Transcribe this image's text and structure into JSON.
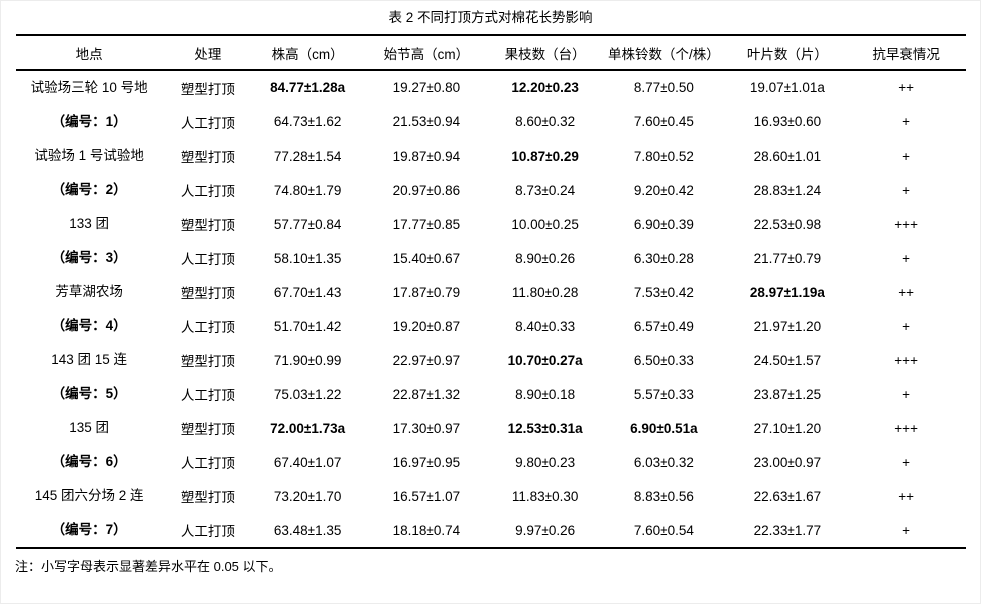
{
  "page": {
    "title": "表 2 不同打顶方式对棉花长势影响",
    "note": "注：小写字母表示显著差异水平在 0.05 以下。"
  },
  "table": {
    "columns": [
      "地点",
      "处理",
      "株高（cm）",
      "始节高（cm）",
      "果枝数（台）",
      "单株铃数（个/株）",
      "叶片数（片）",
      "抗早衰情况"
    ],
    "groups": [
      {
        "location": "试验场三轮 10 号地",
        "code": "（编号：1）",
        "rows": [
          {
            "treatment": "塑型打顶",
            "values": [
              {
                "v": "84.77±1.28a",
                "b": true
              },
              {
                "v": "19.27±0.80"
              },
              {
                "v": "12.20±0.23",
                "b": true
              },
              {
                "v": "8.77±0.50"
              },
              {
                "v": "19.07±1.01a"
              }
            ],
            "resistance": "++"
          },
          {
            "treatment": "人工打顶",
            "values": [
              {
                "v": "64.73±1.62"
              },
              {
                "v": "21.53±0.94"
              },
              {
                "v": "8.60±0.32"
              },
              {
                "v": "7.60±0.45"
              },
              {
                "v": "16.93±0.60"
              }
            ],
            "resistance": "+"
          }
        ]
      },
      {
        "location": "试验场 1 号试验地",
        "code": "（编号：2）",
        "rows": [
          {
            "treatment": "塑型打顶",
            "values": [
              {
                "v": "77.28±1.54"
              },
              {
                "v": "19.87±0.94"
              },
              {
                "v": "10.87±0.29",
                "b": true
              },
              {
                "v": "7.80±0.52"
              },
              {
                "v": "28.60±1.01"
              }
            ],
            "resistance": "+"
          },
          {
            "treatment": "人工打顶",
            "values": [
              {
                "v": "74.80±1.79"
              },
              {
                "v": "20.97±0.86"
              },
              {
                "v": "8.73±0.24"
              },
              {
                "v": "9.20±0.42"
              },
              {
                "v": "28.83±1.24"
              }
            ],
            "resistance": "+"
          }
        ]
      },
      {
        "location": "133 团",
        "code": "（编号：3）",
        "rows": [
          {
            "treatment": "塑型打顶",
            "values": [
              {
                "v": "57.77±0.84"
              },
              {
                "v": "17.77±0.85"
              },
              {
                "v": "10.00±0.25"
              },
              {
                "v": "6.90±0.39"
              },
              {
                "v": "22.53±0.98"
              }
            ],
            "resistance": "+++"
          },
          {
            "treatment": "人工打顶",
            "values": [
              {
                "v": "58.10±1.35"
              },
              {
                "v": "15.40±0.67"
              },
              {
                "v": "8.90±0.26"
              },
              {
                "v": "6.30±0.28"
              },
              {
                "v": "21.77±0.79"
              }
            ],
            "resistance": "+"
          }
        ]
      },
      {
        "location": "芳草湖农场",
        "code": "（编号：4）",
        "rows": [
          {
            "treatment": "塑型打顶",
            "values": [
              {
                "v": "67.70±1.43"
              },
              {
                "v": "17.87±0.79"
              },
              {
                "v": "11.80±0.28"
              },
              {
                "v": "7.53±0.42"
              },
              {
                "v": "28.97±1.19a",
                "b": true
              }
            ],
            "resistance": "++"
          },
          {
            "treatment": "人工打顶",
            "values": [
              {
                "v": "51.70±1.42"
              },
              {
                "v": "19.20±0.87"
              },
              {
                "v": "8.40±0.33"
              },
              {
                "v": "6.57±0.49"
              },
              {
                "v": "21.97±1.20"
              }
            ],
            "resistance": "+"
          }
        ]
      },
      {
        "location": "143 团 15 连",
        "code": "（编号：5）",
        "rows": [
          {
            "treatment": "塑型打顶",
            "values": [
              {
                "v": "71.90±0.99"
              },
              {
                "v": "22.97±0.97"
              },
              {
                "v": "10.70±0.27a",
                "b": true
              },
              {
                "v": "6.50±0.33"
              },
              {
                "v": "24.50±1.57"
              }
            ],
            "resistance": "+++"
          },
          {
            "treatment": "人工打顶",
            "values": [
              {
                "v": "75.03±1.22"
              },
              {
                "v": "22.87±1.32"
              },
              {
                "v": "8.90±0.18"
              },
              {
                "v": "5.57±0.33"
              },
              {
                "v": "23.87±1.25"
              }
            ],
            "resistance": "+"
          }
        ]
      },
      {
        "location": "135 团",
        "code": "（编号：6）",
        "rows": [
          {
            "treatment": "塑型打顶",
            "values": [
              {
                "v": "72.00±1.73a",
                "b": true
              },
              {
                "v": "17.30±0.97"
              },
              {
                "v": "12.53±0.31a",
                "b": true
              },
              {
                "v": "6.90±0.51a",
                "b": true
              },
              {
                "v": "27.10±1.20"
              }
            ],
            "resistance": "+++"
          },
          {
            "treatment": "人工打顶",
            "values": [
              {
                "v": "67.40±1.07"
              },
              {
                "v": "16.97±0.95"
              },
              {
                "v": "9.80±0.23"
              },
              {
                "v": "6.03±0.32"
              },
              {
                "v": "23.00±0.97"
              }
            ],
            "resistance": "+"
          }
        ]
      },
      {
        "location": "145 团六分场 2 连",
        "code": "（编号：7）",
        "rows": [
          {
            "treatment": "塑型打顶",
            "values": [
              {
                "v": "73.20±1.70"
              },
              {
                "v": "16.57±1.07"
              },
              {
                "v": "11.83±0.30"
              },
              {
                "v": "8.83±0.56"
              },
              {
                "v": "22.63±1.67"
              }
            ],
            "resistance": "++"
          },
          {
            "treatment": "人工打顶",
            "values": [
              {
                "v": "63.48±1.35"
              },
              {
                "v": "18.18±0.74"
              },
              {
                "v": "9.97±0.26"
              },
              {
                "v": "7.60±0.54"
              },
              {
                "v": "22.33±1.77"
              }
            ],
            "resistance": "+"
          }
        ]
      }
    ]
  }
}
